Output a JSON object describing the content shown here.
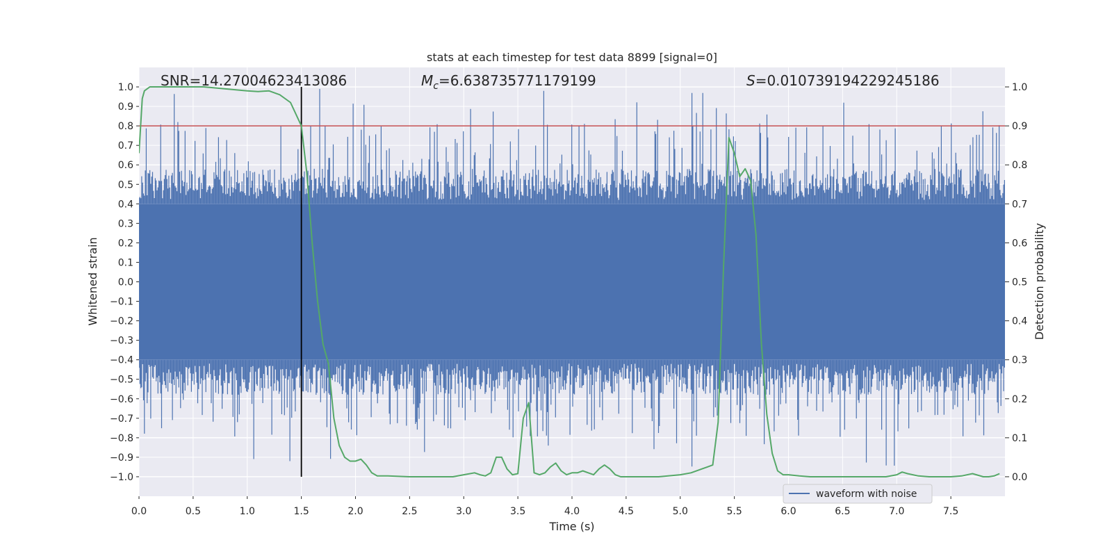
{
  "chart_data": {
    "type": "line",
    "title": "stats at each timestep for test data 8899 [signal=0]",
    "xlabel": "Time (s)",
    "ylabel": "Whitened strain",
    "y2label": "Detection probability",
    "xlim": [
      0,
      8
    ],
    "ylim": [
      -1.1,
      1.1
    ],
    "y2lim": [
      -0.05,
      1.05
    ],
    "xticks": [
      "0.0",
      "0.5",
      "1.0",
      "1.5",
      "2.0",
      "2.5",
      "3.0",
      "3.5",
      "4.0",
      "4.5",
      "5.0",
      "5.5",
      "6.0",
      "6.5",
      "7.0",
      "7.5"
    ],
    "yticks": [
      "1.0",
      "0.9",
      "0.8",
      "0.7",
      "0.6",
      "0.5",
      "0.4",
      "0.3",
      "0.2",
      "0.1",
      "0.0",
      "−0.1",
      "−0.2",
      "−0.3",
      "−0.4",
      "−0.5",
      "−0.6",
      "−0.7",
      "−0.8",
      "−0.9",
      "−1.0"
    ],
    "y2ticks": [
      "1.0",
      "0.9",
      "0.8",
      "0.7",
      "0.6",
      "0.5",
      "0.4",
      "0.3",
      "0.2",
      "0.1",
      "0.0"
    ],
    "grid": true,
    "legend_position": "lower-right",
    "annotations": {
      "snr": "SNR=14.27004623413086",
      "mc_symbol": "M",
      "mc_sub": "c",
      "mc_value": "=6.638735771179199",
      "s_symbol": "S",
      "s_value": "=0.010739194229245186"
    },
    "threshold": {
      "value": 0.9,
      "axis": "y2",
      "color": "#c44e52"
    },
    "marker_line": {
      "x": 1.5,
      "y_range": [
        -1.0,
        1.0
      ],
      "color": "#000000"
    },
    "series": [
      {
        "name": "waveform with noise",
        "axis": "y",
        "kind": "noise-waveform",
        "color": "#4c72b0",
        "core_range": [
          -0.4,
          0.4
        ],
        "peak_range": [
          -1.0,
          1.0
        ]
      },
      {
        "axis": "y2",
        "kind": "line",
        "color": "#55a868",
        "x": [
          0.0,
          0.03,
          0.05,
          0.1,
          0.2,
          0.4,
          0.6,
          0.8,
          1.0,
          1.1,
          1.2,
          1.3,
          1.4,
          1.5,
          1.55,
          1.6,
          1.65,
          1.7,
          1.75,
          1.8,
          1.85,
          1.9,
          1.95,
          2.0,
          2.05,
          2.1,
          2.15,
          2.2,
          2.3,
          2.5,
          2.7,
          2.9,
          3.0,
          3.1,
          3.15,
          3.2,
          3.25,
          3.3,
          3.35,
          3.4,
          3.45,
          3.5,
          3.55,
          3.6,
          3.65,
          3.7,
          3.75,
          3.8,
          3.85,
          3.9,
          3.95,
          4.0,
          4.05,
          4.1,
          4.15,
          4.2,
          4.25,
          4.3,
          4.35,
          4.4,
          4.45,
          4.5,
          4.55,
          4.6,
          4.65,
          4.7,
          4.8,
          5.0,
          5.1,
          5.2,
          5.3,
          5.35,
          5.4,
          5.45,
          5.5,
          5.55,
          5.6,
          5.65,
          5.7,
          5.75,
          5.8,
          5.85,
          5.9,
          5.95,
          6.0,
          6.1,
          6.2,
          6.3,
          6.5,
          6.7,
          6.9,
          7.0,
          7.05,
          7.1,
          7.2,
          7.3,
          7.4,
          7.5,
          7.6,
          7.7,
          7.8,
          7.85,
          7.9,
          7.95
        ],
        "values": [
          0.83,
          0.97,
          0.99,
          1.0,
          1.0,
          1.0,
          1.0,
          0.995,
          0.99,
          0.988,
          0.99,
          0.98,
          0.96,
          0.9,
          0.78,
          0.6,
          0.45,
          0.34,
          0.29,
          0.15,
          0.08,
          0.05,
          0.04,
          0.04,
          0.045,
          0.03,
          0.01,
          0.002,
          0.002,
          0.0,
          0.0,
          0.0,
          0.005,
          0.01,
          0.005,
          0.002,
          0.01,
          0.05,
          0.05,
          0.02,
          0.005,
          0.008,
          0.15,
          0.19,
          0.01,
          0.005,
          0.01,
          0.025,
          0.035,
          0.015,
          0.005,
          0.01,
          0.01,
          0.015,
          0.01,
          0.005,
          0.02,
          0.03,
          0.02,
          0.005,
          0.0,
          0.0,
          0.0,
          0.0,
          0.0,
          0.0,
          0.0,
          0.005,
          0.01,
          0.02,
          0.03,
          0.14,
          0.54,
          0.87,
          0.83,
          0.77,
          0.79,
          0.76,
          0.62,
          0.34,
          0.16,
          0.06,
          0.015,
          0.005,
          0.005,
          0.002,
          0.0,
          0.0,
          0.0,
          0.0,
          0.0,
          0.005,
          0.012,
          0.008,
          0.002,
          0.0,
          0.0,
          0.0,
          0.002,
          0.008,
          0.0,
          0.0,
          0.002,
          0.008
        ]
      }
    ]
  }
}
